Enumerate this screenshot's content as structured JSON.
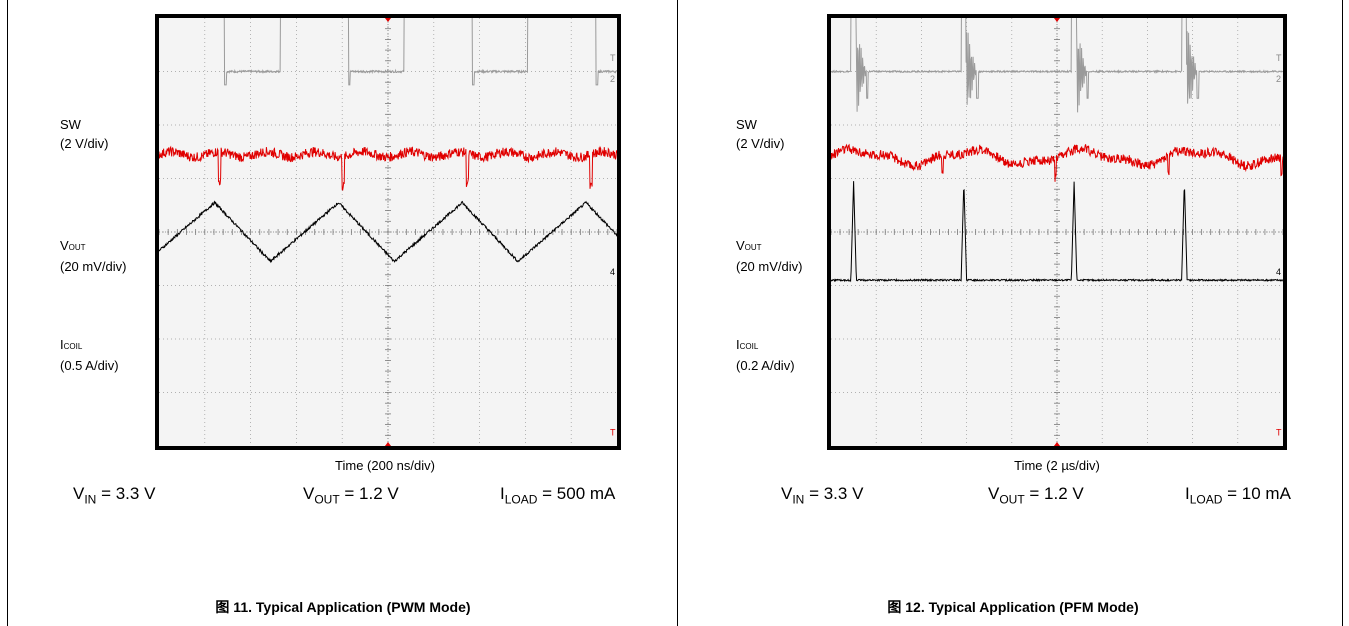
{
  "figures": [
    {
      "id": "fig11",
      "caption": "图 11. Typical Application (PWM Mode)",
      "x_label": "Time (200 ns/div)",
      "channels": [
        {
          "name_main": "SW",
          "name_sub": "",
          "scale": "(2 V/div)"
        },
        {
          "name_main": "V",
          "name_sub": "OUT",
          "scale": "(20 mV/div)"
        },
        {
          "name_main": "I",
          "name_sub": "COIL",
          "scale": "(0.5 A/div)"
        }
      ],
      "conditions": [
        {
          "main": "V",
          "sub": "IN",
          "rest": " = 3.3 V"
        },
        {
          "main": "V",
          "sub": "OUT",
          "rest": " = 1.2 V"
        },
        {
          "main": "I",
          "sub": "LOAD",
          "rest": " = 500 mA"
        }
      ],
      "markers": {
        "ch1": "T",
        "ch2": "2",
        "ch4": "4",
        "trig": "T"
      }
    },
    {
      "id": "fig12",
      "caption": "图 12. Typical Application (PFM Mode)",
      "x_label": "Time (2 µs/div)",
      "channels": [
        {
          "name_main": "SW",
          "name_sub": "",
          "scale": "(2 V/div)"
        },
        {
          "name_main": "V",
          "name_sub": "OUT",
          "scale": "(20 mV/div)"
        },
        {
          "name_main": "I",
          "name_sub": "COIL",
          "scale": "(0.2 A/div)"
        }
      ],
      "conditions": [
        {
          "main": "V",
          "sub": "IN",
          "rest": " = 3.3 V"
        },
        {
          "main": "V",
          "sub": "OUT",
          "rest": " = 1.2 V"
        },
        {
          "main": "I",
          "sub": "LOAD",
          "rest": " = 10 mA"
        }
      ],
      "markers": {
        "ch1": "T",
        "ch2": "2",
        "ch4": "4",
        "trig": "T"
      }
    }
  ],
  "chart_data": [
    {
      "type": "line",
      "title": "",
      "xlabel": "Time (200 ns/div)",
      "x_divisions": 10,
      "y_divisions": 8,
      "grid": true,
      "series": [
        {
          "name": "SW",
          "color": "#9a9a9a",
          "waveform": "square",
          "periods_visible": 3.7,
          "high_fraction": 0.55,
          "high_div": 4.55,
          "low_div": 3.0
        },
        {
          "name": "VOUT",
          "color": "#e00000",
          "waveform": "ripple",
          "level_div": 1.45
        },
        {
          "name": "ICOIL",
          "color": "#000000",
          "waveform": "triangle",
          "periods_visible": 3.7,
          "min_div": -0.55,
          "max_div": 0.55
        }
      ]
    },
    {
      "type": "line",
      "title": "",
      "xlabel": "Time (2 µs/div)",
      "x_divisions": 10,
      "y_divisions": 8,
      "grid": true,
      "series": [
        {
          "name": "SW",
          "color": "#9a9a9a",
          "waveform": "burst",
          "pulses": 4,
          "level_div": 3.0
        },
        {
          "name": "VOUT",
          "color": "#e00000",
          "waveform": "ripple",
          "level_div": 1.4
        },
        {
          "name": "ICOIL",
          "color": "#000000",
          "waveform": "pulse",
          "pulses": 4,
          "base_div": -0.9,
          "peak_div": 0.95
        }
      ]
    }
  ]
}
